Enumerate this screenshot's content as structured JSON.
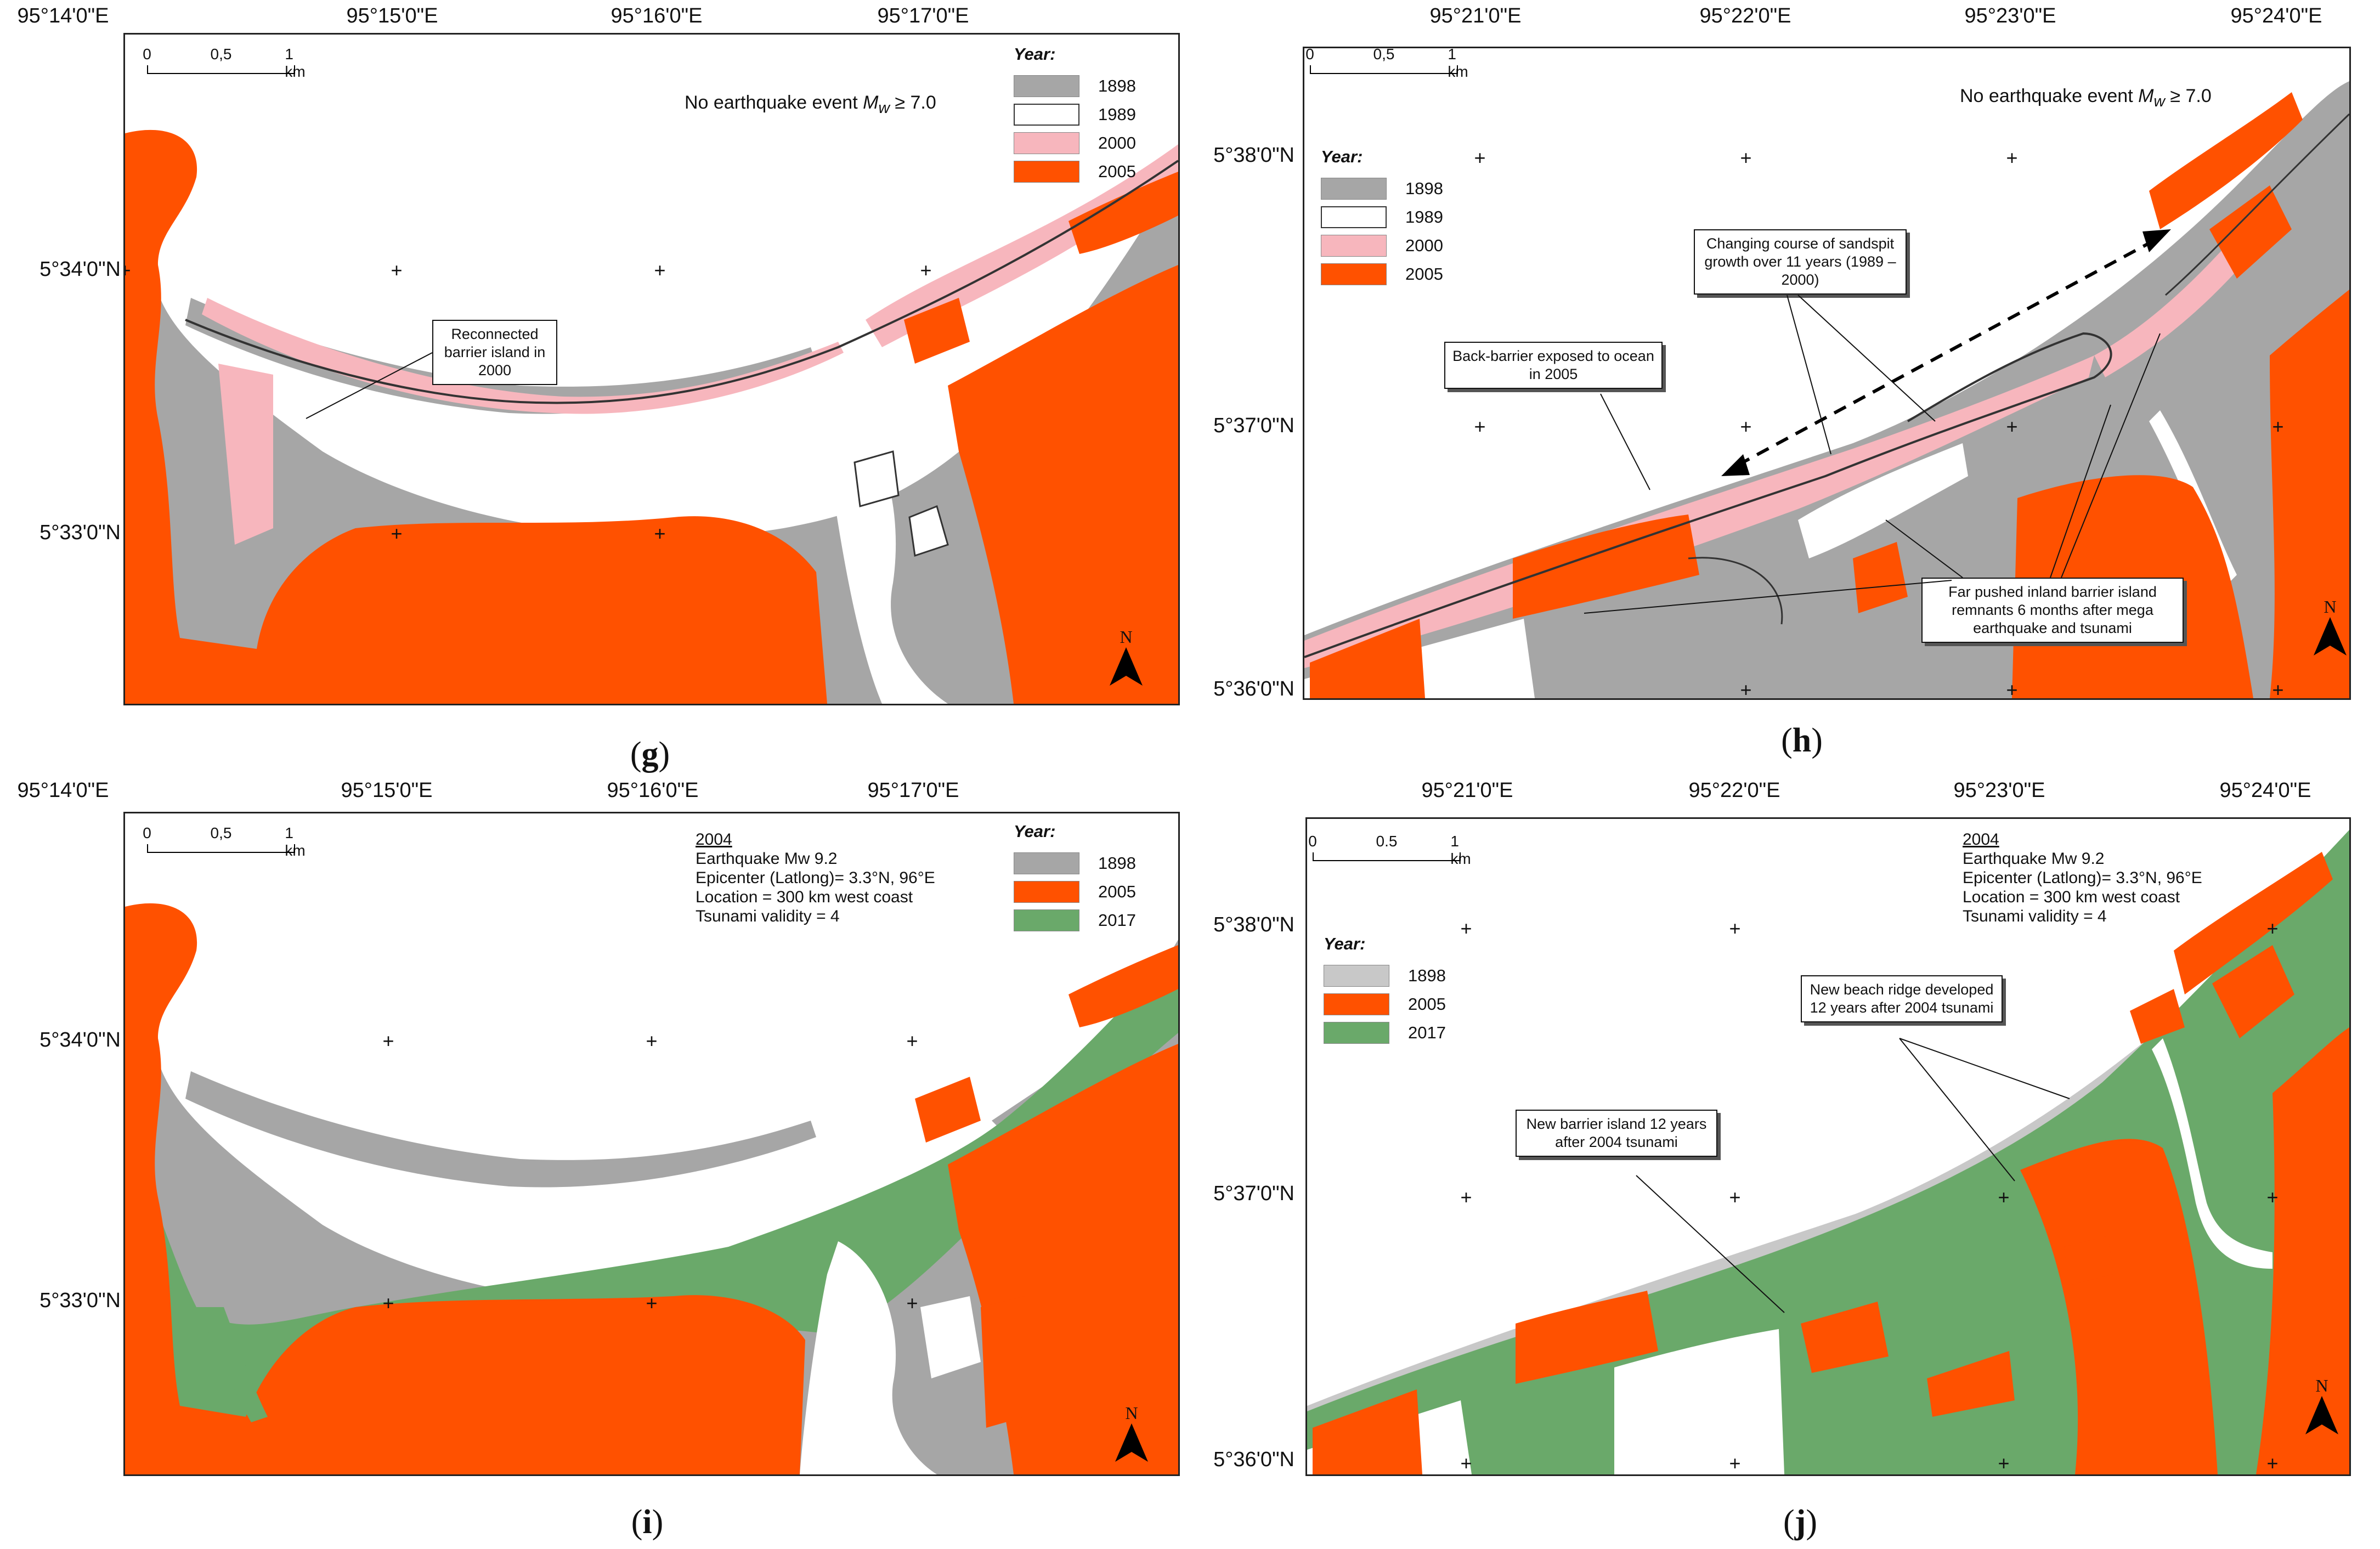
{
  "panels": {
    "g": {
      "caption": "g",
      "top_ticks": [
        "95°14'0\"E",
        "95°15'0\"E",
        "95°16'0\"E",
        "95°17'0\"E"
      ],
      "left_ticks": [
        "5°34'0\"N",
        "5°33'0\"N"
      ],
      "scale": [
        "0",
        "0,5",
        "1 km"
      ],
      "note_text": "No earthquake event",
      "note_sym": "M",
      "note_sub": "w",
      "note_cond": "≥ 7.0",
      "legend_title": "Year:",
      "legend": [
        {
          "label": "1898",
          "color": "#a6a6a6"
        },
        {
          "label": "1989",
          "color": "#ffffff"
        },
        {
          "label": "2000",
          "color": "#f7b6bd"
        },
        {
          "label": "2005",
          "color": "#ff5100"
        }
      ],
      "callouts": [
        "Reconnected barrier island in 2000"
      ],
      "north": "N"
    },
    "h": {
      "caption": "h",
      "top_ticks": [
        "95°21'0\"E",
        "95°22'0\"E",
        "95°23'0\"E",
        "95°24'0\"E"
      ],
      "left_ticks": [
        "5°38'0\"N",
        "5°37'0\"N",
        "5°36'0\"N"
      ],
      "scale": [
        "0",
        "0,5",
        "1 km"
      ],
      "note_text": "No earthquake event",
      "note_sym": "M",
      "note_sub": "w",
      "note_cond": "≥ 7.0",
      "legend_title": "Year:",
      "legend": [
        {
          "label": "1898",
          "color": "#a6a6a6"
        },
        {
          "label": "1989",
          "color": "#ffffff"
        },
        {
          "label": "2000",
          "color": "#f7b6bd"
        },
        {
          "label": "2005",
          "color": "#ff5100"
        }
      ],
      "callouts": [
        "Changing course of sandspit growth over 11 years (1989 – 2000)",
        "Back-barrier exposed to ocean in 2005",
        "Far pushed inland barrier island remnants 6 months after mega earthquake and tsunami"
      ],
      "north": "N"
    },
    "i": {
      "caption": "i",
      "top_ticks": [
        "95°14'0\"E",
        "95°15'0\"E",
        "95°16'0\"E",
        "95°17'0\"E"
      ],
      "left_ticks": [
        "5°34'0\"N",
        "5°33'0\"N"
      ],
      "scale": [
        "0",
        "0,5",
        "1 km"
      ],
      "info_year": "2004",
      "info_lines": [
        "Earthquake Mw 9.2",
        "Epicenter (Latlong)= 3.3°N, 96°E",
        "Location = 300 km west coast",
        "Tsunami validity = 4"
      ],
      "legend_title": "Year:",
      "legend": [
        {
          "label": "1898",
          "color": "#a6a6a6"
        },
        {
          "label": "2005",
          "color": "#ff5100"
        },
        {
          "label": "2017",
          "color": "#6aa96a"
        }
      ],
      "north": "N"
    },
    "j": {
      "caption": "j",
      "top_ticks": [
        "95°21'0\"E",
        "95°22'0\"E",
        "95°23'0\"E",
        "95°24'0\"E"
      ],
      "left_ticks": [
        "5°38'0\"N",
        "5°37'0\"N",
        "5°36'0\"N"
      ],
      "scale": [
        "0",
        "0.5",
        "1 km"
      ],
      "info_year": "2004",
      "info_lines": [
        "Earthquake Mw 9.2",
        "Epicenter (Latlong)= 3.3°N, 96°E",
        "Location = 300 km west coast",
        "Tsunami validity = 4"
      ],
      "legend_title": "Year:",
      "legend": [
        {
          "label": "1898",
          "color": "#c8c8c8"
        },
        {
          "label": "2005",
          "color": "#ff5100"
        },
        {
          "label": "2017",
          "color": "#6aa96a"
        }
      ],
      "callouts": [
        "New beach ridge developed 12 years after 2004 tsunami",
        "New barrier island 12 years after 2004 tsunami"
      ],
      "north": "N"
    }
  }
}
